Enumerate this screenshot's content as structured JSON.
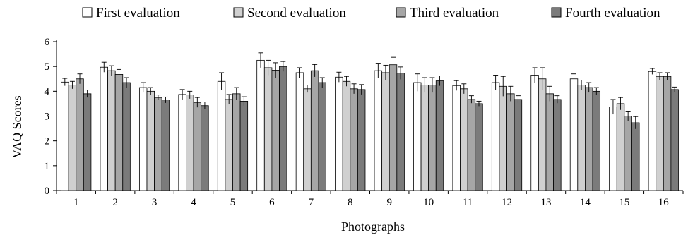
{
  "chart_data": {
    "type": "bar",
    "xlabel": "Photographs",
    "ylabel": "VAQ Scores",
    "ylim": [
      0,
      6
    ],
    "yticks": [
      0,
      1,
      2,
      3,
      4,
      5,
      6
    ],
    "legend_position": "top",
    "grid": false,
    "categories": [
      "1",
      "2",
      "3",
      "4",
      "5",
      "6",
      "7",
      "8",
      "9",
      "10",
      "11",
      "12",
      "13",
      "14",
      "15",
      "16"
    ],
    "series": [
      {
        "name": "First evaluation",
        "color": "#ffffff",
        "values": [
          4.37,
          4.97,
          4.15,
          3.87,
          4.4,
          5.25,
          4.75,
          4.57,
          4.83,
          4.35,
          4.23,
          4.35,
          4.65,
          4.5,
          3.37,
          4.8
        ],
        "errors": [
          0.15,
          0.2,
          0.2,
          0.2,
          0.35,
          0.3,
          0.2,
          0.2,
          0.3,
          0.35,
          0.2,
          0.3,
          0.3,
          0.2,
          0.3,
          0.12
        ]
      },
      {
        "name": "Second evaluation",
        "color": "#d0d0d0",
        "values": [
          4.25,
          4.83,
          4.0,
          3.85,
          3.67,
          4.95,
          4.1,
          4.4,
          4.75,
          4.25,
          4.1,
          4.2,
          4.5,
          4.25,
          3.5,
          4.6
        ],
        "errors": [
          0.15,
          0.2,
          0.15,
          0.15,
          0.2,
          0.3,
          0.15,
          0.2,
          0.3,
          0.3,
          0.2,
          0.4,
          0.45,
          0.2,
          0.25,
          0.15
        ]
      },
      {
        "name": "Third evaluation",
        "color": "#a6a6a6",
        "values": [
          4.5,
          4.68,
          3.75,
          3.55,
          3.9,
          4.85,
          4.83,
          4.1,
          5.07,
          4.25,
          3.67,
          3.9,
          3.9,
          4.15,
          3.0,
          4.6
        ],
        "errors": [
          0.2,
          0.2,
          0.1,
          0.2,
          0.25,
          0.3,
          0.25,
          0.2,
          0.3,
          0.3,
          0.15,
          0.3,
          0.3,
          0.2,
          0.2,
          0.15
        ]
      },
      {
        "name": "Fourth evaluation",
        "color": "#7b7b7b",
        "values": [
          3.9,
          4.35,
          3.65,
          3.42,
          3.6,
          5.0,
          4.35,
          4.07,
          4.73,
          4.42,
          3.5,
          3.67,
          3.67,
          4.0,
          2.73,
          4.07
        ],
        "errors": [
          0.15,
          0.2,
          0.12,
          0.15,
          0.18,
          0.2,
          0.2,
          0.2,
          0.25,
          0.2,
          0.1,
          0.15,
          0.15,
          0.15,
          0.25,
          0.1
        ]
      }
    ]
  }
}
